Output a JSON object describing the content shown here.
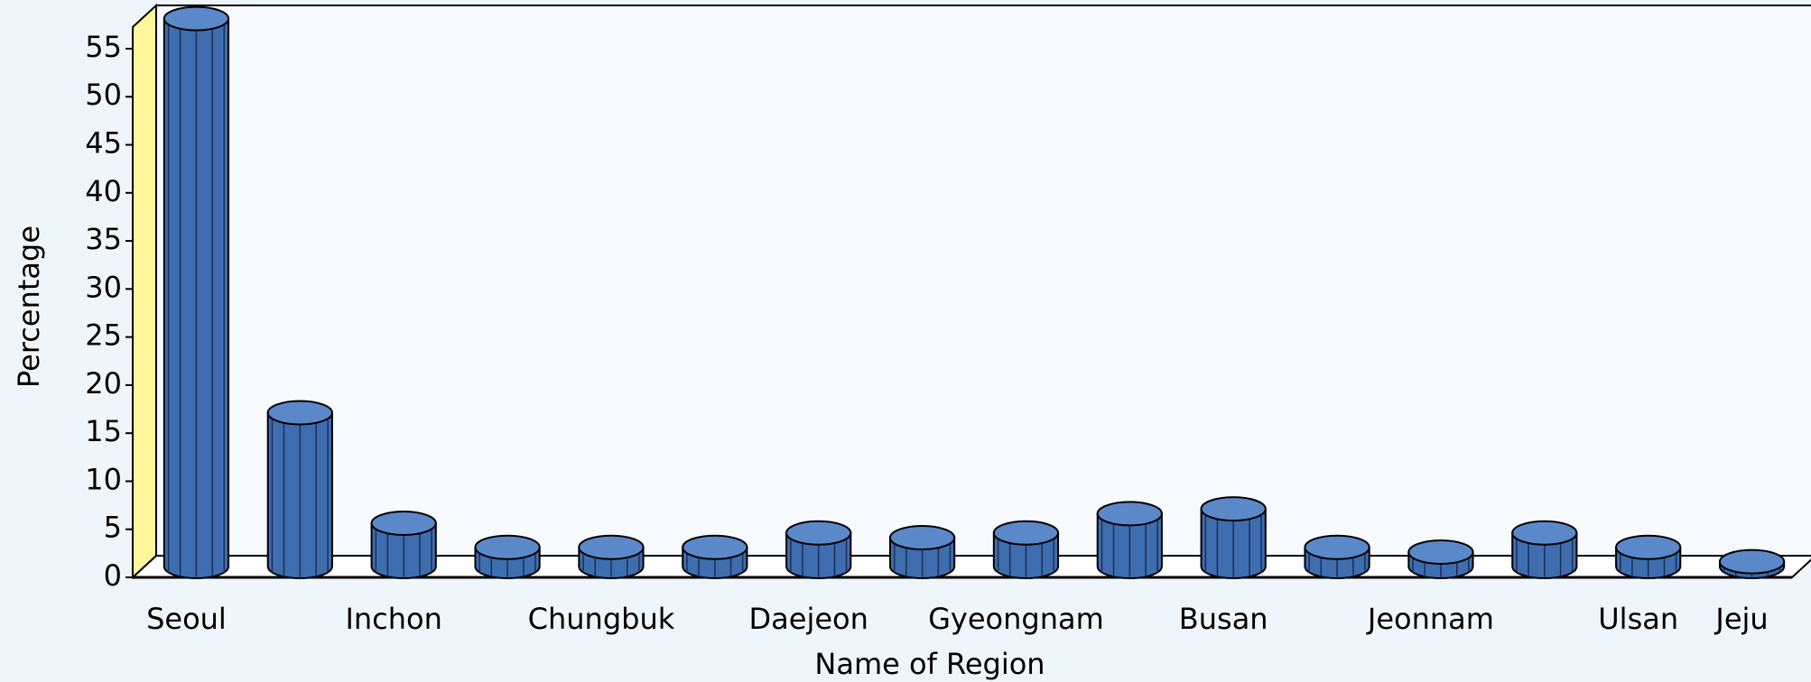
{
  "chart_data": {
    "type": "bar3d",
    "x_label": "Name of Region",
    "y_label": "Percentage",
    "categories": [
      "Seoul",
      null,
      "Inchon",
      null,
      "Chungbuk",
      null,
      "Daejeon",
      null,
      "Gyeongnam",
      null,
      "Busan",
      null,
      "Jeonnam",
      null,
      "Ulsan",
      "Jeju"
    ],
    "values": [
      57,
      16,
      4.5,
      2,
      2,
      2,
      3.5,
      3,
      3.5,
      5.5,
      6,
      2,
      1.5,
      3.5,
      2,
      0.5
    ],
    "color": "#3e6db0",
    "ylim": [
      0,
      58
    ],
    "yticks": [
      0,
      5,
      10,
      15,
      20,
      25,
      30,
      35,
      40,
      45,
      50,
      55
    ]
  }
}
